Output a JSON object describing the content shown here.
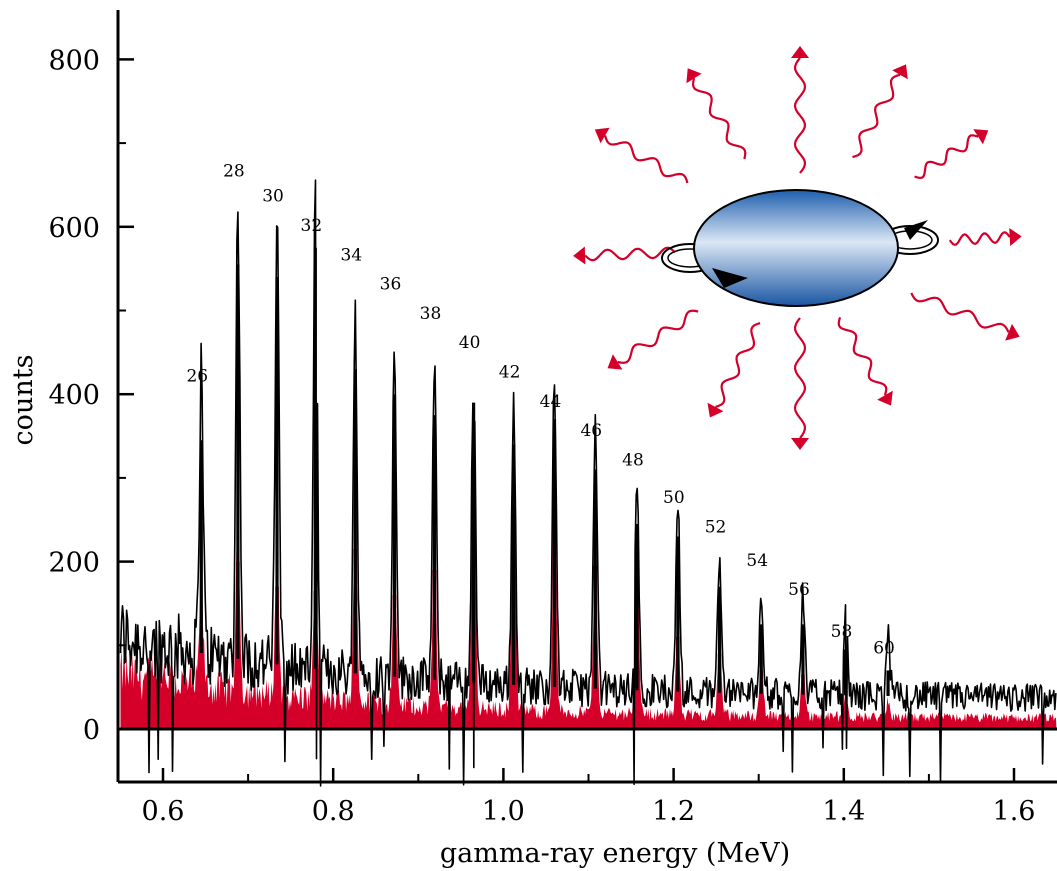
{
  "colors": {
    "spectrum": "#000000",
    "background_fill": "#d4002a",
    "arrows": "#d4002a",
    "nucleus_dark": "#1f5fae",
    "nucleus_light": "#dbe7f5"
  },
  "inset": {
    "icon": "deformed-rotating-nucleus-emitting-gamma-rays-icon"
  },
  "chart_data": {
    "type": "line",
    "title": "",
    "xlabel": "gamma-ray energy (MeV)",
    "ylabel": "counts",
    "xlim": [
      0.55,
      1.65
    ],
    "ylim": [
      -80,
      870
    ],
    "xticks": [
      0.6,
      0.8,
      1.0,
      1.2,
      1.4,
      1.6
    ],
    "xtick_labels": [
      "0.6",
      "0.8",
      "1.0",
      "1.2",
      "1.4",
      "1.6"
    ],
    "yticks": [
      0,
      200,
      400,
      600,
      800
    ],
    "ytick_labels": [
      "0",
      "200",
      "400",
      "600",
      "800"
    ],
    "grid": false,
    "legend": "none",
    "series": [
      {
        "role": "total spectrum (black)",
        "peaks": [
          {
            "x": 0.645,
            "y": 345
          },
          {
            "x": 0.688,
            "y": 555
          },
          {
            "x": 0.734,
            "y": 540
          },
          {
            "x": 0.779,
            "y": 575
          },
          {
            "x": 0.826,
            "y": 430
          },
          {
            "x": 0.872,
            "y": 400
          },
          {
            "x": 0.919,
            "y": 375
          },
          {
            "x": 0.965,
            "y": 390
          },
          {
            "x": 1.012,
            "y": 340
          },
          {
            "x": 1.06,
            "y": 370
          },
          {
            "x": 1.108,
            "y": 310
          },
          {
            "x": 1.157,
            "y": 245
          },
          {
            "x": 1.205,
            "y": 230
          },
          {
            "x": 1.254,
            "y": 170
          },
          {
            "x": 1.303,
            "y": 125
          },
          {
            "x": 1.352,
            "y": 125
          },
          {
            "x": 1.402,
            "y": 95
          },
          {
            "x": 1.452,
            "y": 70
          }
        ]
      },
      {
        "role": "gated spectrum (red)",
        "peaks": [
          {
            "x": 0.645,
            "y": 120
          },
          {
            "x": 0.688,
            "y": 200
          },
          {
            "x": 0.734,
            "y": 170
          },
          {
            "x": 0.779,
            "y": 165
          },
          {
            "x": 0.826,
            "y": 215
          },
          {
            "x": 0.872,
            "y": 160
          },
          {
            "x": 0.919,
            "y": 190
          },
          {
            "x": 0.965,
            "y": 315
          },
          {
            "x": 1.012,
            "y": 295
          },
          {
            "x": 1.06,
            "y": 240
          },
          {
            "x": 1.108,
            "y": 195
          },
          {
            "x": 1.157,
            "y": 200
          },
          {
            "x": 1.205,
            "y": 110
          },
          {
            "x": 1.254,
            "y": 90
          },
          {
            "x": 1.303,
            "y": 70
          },
          {
            "x": 1.352,
            "y": 65
          },
          {
            "x": 1.402,
            "y": 25
          },
          {
            "x": 1.452,
            "y": 20
          }
        ]
      }
    ],
    "annotations": [
      {
        "text": "26",
        "x": 0.645,
        "y": 415
      },
      {
        "text": "28",
        "x": 0.688,
        "y": 660
      },
      {
        "text": "30",
        "x": 0.734,
        "y": 630
      },
      {
        "text": "32",
        "x": 0.779,
        "y": 595
      },
      {
        "text": "34",
        "x": 0.826,
        "y": 560
      },
      {
        "text": "36",
        "x": 0.872,
        "y": 525
      },
      {
        "text": "38",
        "x": 0.919,
        "y": 490
      },
      {
        "text": "40",
        "x": 0.965,
        "y": 455
      },
      {
        "text": "42",
        "x": 1.012,
        "y": 420
      },
      {
        "text": "44",
        "x": 1.06,
        "y": 385
      },
      {
        "text": "46",
        "x": 1.108,
        "y": 350
      },
      {
        "text": "48",
        "x": 1.157,
        "y": 315
      },
      {
        "text": "50",
        "x": 1.205,
        "y": 270
      },
      {
        "text": "52",
        "x": 1.254,
        "y": 235
      },
      {
        "text": "54",
        "x": 1.303,
        "y": 195
      },
      {
        "text": "56",
        "x": 1.352,
        "y": 160
      },
      {
        "text": "58",
        "x": 1.402,
        "y": 110
      },
      {
        "text": "60",
        "x": 1.452,
        "y": 90
      }
    ]
  }
}
